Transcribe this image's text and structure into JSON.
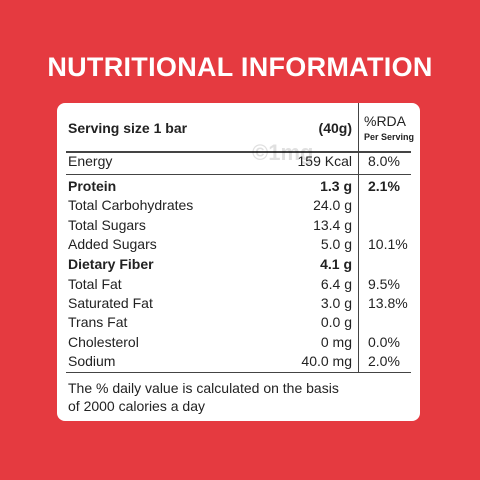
{
  "header": {
    "title": "NUTRITIONAL INFORMATION"
  },
  "table": {
    "serving_label": "Serving size 1 bar",
    "serving_amount": "(40g)",
    "rda_header": "%RDA",
    "rda_subheader": "Per Serving",
    "rows": [
      {
        "name": "Energy",
        "amount": "159 Kcal",
        "rda": "8.0%",
        "bold": false
      },
      {
        "name": "Protein",
        "amount": "1.3 g",
        "rda": "2.1%",
        "bold": true
      },
      {
        "name": "Total Carbohydrates",
        "amount": "24.0 g",
        "rda": null,
        "bold": false
      },
      {
        "name": "Total Sugars",
        "amount": "13.4 g",
        "rda": null,
        "bold": false
      },
      {
        "name": "Added Sugars",
        "amount": "5.0 g",
        "rda": "10.1%",
        "bold": false
      },
      {
        "name": "Dietary Fiber",
        "amount": "4.1 g",
        "rda": null,
        "bold": true
      },
      {
        "name": "Total Fat",
        "amount": "6.4 g",
        "rda": "9.5%",
        "bold": false
      },
      {
        "name": "Saturated Fat",
        "amount": "3.0 g",
        "rda": "13.8%",
        "bold": false
      },
      {
        "name": "Trans Fat",
        "amount": "0.0 g",
        "rda": null,
        "bold": false
      },
      {
        "name": "Cholesterol",
        "amount": "0 mg",
        "rda": "0.0%",
        "bold": false
      },
      {
        "name": "Sodium",
        "amount": "40.0 mg",
        "rda": "2.0%",
        "bold": false
      }
    ]
  },
  "footer": {
    "note_line_1": "The % daily value is calculated on the basis",
    "note_line_2": "of 2000 calories a day"
  },
  "watermark": "©1mg"
}
